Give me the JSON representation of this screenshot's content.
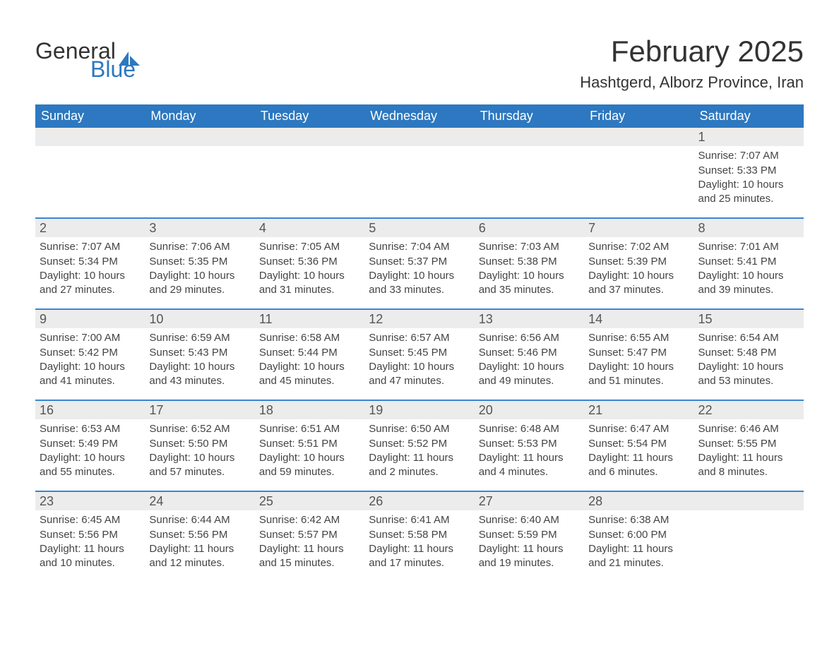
{
  "logo": {
    "line1": "General",
    "line2": "Blue",
    "sail_color": "#2d78c0"
  },
  "header": {
    "month_title": "February 2025",
    "location": "Hashtgerd, Alborz Province, Iran"
  },
  "colors": {
    "accent": "#2d78c0",
    "accent_border": "#3a86cf",
    "row_header_bg": "#ececec",
    "background": "#ffffff",
    "text": "#333333"
  },
  "weekdays": [
    "Sunday",
    "Monday",
    "Tuesday",
    "Wednesday",
    "Thursday",
    "Friday",
    "Saturday"
  ],
  "weeks": [
    [
      null,
      null,
      null,
      null,
      null,
      null,
      {
        "n": "1",
        "sunrise": "Sunrise: 7:07 AM",
        "sunset": "Sunset: 5:33 PM",
        "dl1": "Daylight: 10 hours",
        "dl2": "and 25 minutes."
      }
    ],
    [
      {
        "n": "2",
        "sunrise": "Sunrise: 7:07 AM",
        "sunset": "Sunset: 5:34 PM",
        "dl1": "Daylight: 10 hours",
        "dl2": "and 27 minutes."
      },
      {
        "n": "3",
        "sunrise": "Sunrise: 7:06 AM",
        "sunset": "Sunset: 5:35 PM",
        "dl1": "Daylight: 10 hours",
        "dl2": "and 29 minutes."
      },
      {
        "n": "4",
        "sunrise": "Sunrise: 7:05 AM",
        "sunset": "Sunset: 5:36 PM",
        "dl1": "Daylight: 10 hours",
        "dl2": "and 31 minutes."
      },
      {
        "n": "5",
        "sunrise": "Sunrise: 7:04 AM",
        "sunset": "Sunset: 5:37 PM",
        "dl1": "Daylight: 10 hours",
        "dl2": "and 33 minutes."
      },
      {
        "n": "6",
        "sunrise": "Sunrise: 7:03 AM",
        "sunset": "Sunset: 5:38 PM",
        "dl1": "Daylight: 10 hours",
        "dl2": "and 35 minutes."
      },
      {
        "n": "7",
        "sunrise": "Sunrise: 7:02 AM",
        "sunset": "Sunset: 5:39 PM",
        "dl1": "Daylight: 10 hours",
        "dl2": "and 37 minutes."
      },
      {
        "n": "8",
        "sunrise": "Sunrise: 7:01 AM",
        "sunset": "Sunset: 5:41 PM",
        "dl1": "Daylight: 10 hours",
        "dl2": "and 39 minutes."
      }
    ],
    [
      {
        "n": "9",
        "sunrise": "Sunrise: 7:00 AM",
        "sunset": "Sunset: 5:42 PM",
        "dl1": "Daylight: 10 hours",
        "dl2": "and 41 minutes."
      },
      {
        "n": "10",
        "sunrise": "Sunrise: 6:59 AM",
        "sunset": "Sunset: 5:43 PM",
        "dl1": "Daylight: 10 hours",
        "dl2": "and 43 minutes."
      },
      {
        "n": "11",
        "sunrise": "Sunrise: 6:58 AM",
        "sunset": "Sunset: 5:44 PM",
        "dl1": "Daylight: 10 hours",
        "dl2": "and 45 minutes."
      },
      {
        "n": "12",
        "sunrise": "Sunrise: 6:57 AM",
        "sunset": "Sunset: 5:45 PM",
        "dl1": "Daylight: 10 hours",
        "dl2": "and 47 minutes."
      },
      {
        "n": "13",
        "sunrise": "Sunrise: 6:56 AM",
        "sunset": "Sunset: 5:46 PM",
        "dl1": "Daylight: 10 hours",
        "dl2": "and 49 minutes."
      },
      {
        "n": "14",
        "sunrise": "Sunrise: 6:55 AM",
        "sunset": "Sunset: 5:47 PM",
        "dl1": "Daylight: 10 hours",
        "dl2": "and 51 minutes."
      },
      {
        "n": "15",
        "sunrise": "Sunrise: 6:54 AM",
        "sunset": "Sunset: 5:48 PM",
        "dl1": "Daylight: 10 hours",
        "dl2": "and 53 minutes."
      }
    ],
    [
      {
        "n": "16",
        "sunrise": "Sunrise: 6:53 AM",
        "sunset": "Sunset: 5:49 PM",
        "dl1": "Daylight: 10 hours",
        "dl2": "and 55 minutes."
      },
      {
        "n": "17",
        "sunrise": "Sunrise: 6:52 AM",
        "sunset": "Sunset: 5:50 PM",
        "dl1": "Daylight: 10 hours",
        "dl2": "and 57 minutes."
      },
      {
        "n": "18",
        "sunrise": "Sunrise: 6:51 AM",
        "sunset": "Sunset: 5:51 PM",
        "dl1": "Daylight: 10 hours",
        "dl2": "and 59 minutes."
      },
      {
        "n": "19",
        "sunrise": "Sunrise: 6:50 AM",
        "sunset": "Sunset: 5:52 PM",
        "dl1": "Daylight: 11 hours",
        "dl2": "and 2 minutes."
      },
      {
        "n": "20",
        "sunrise": "Sunrise: 6:48 AM",
        "sunset": "Sunset: 5:53 PM",
        "dl1": "Daylight: 11 hours",
        "dl2": "and 4 minutes."
      },
      {
        "n": "21",
        "sunrise": "Sunrise: 6:47 AM",
        "sunset": "Sunset: 5:54 PM",
        "dl1": "Daylight: 11 hours",
        "dl2": "and 6 minutes."
      },
      {
        "n": "22",
        "sunrise": "Sunrise: 6:46 AM",
        "sunset": "Sunset: 5:55 PM",
        "dl1": "Daylight: 11 hours",
        "dl2": "and 8 minutes."
      }
    ],
    [
      {
        "n": "23",
        "sunrise": "Sunrise: 6:45 AM",
        "sunset": "Sunset: 5:56 PM",
        "dl1": "Daylight: 11 hours",
        "dl2": "and 10 minutes."
      },
      {
        "n": "24",
        "sunrise": "Sunrise: 6:44 AM",
        "sunset": "Sunset: 5:56 PM",
        "dl1": "Daylight: 11 hours",
        "dl2": "and 12 minutes."
      },
      {
        "n": "25",
        "sunrise": "Sunrise: 6:42 AM",
        "sunset": "Sunset: 5:57 PM",
        "dl1": "Daylight: 11 hours",
        "dl2": "and 15 minutes."
      },
      {
        "n": "26",
        "sunrise": "Sunrise: 6:41 AM",
        "sunset": "Sunset: 5:58 PM",
        "dl1": "Daylight: 11 hours",
        "dl2": "and 17 minutes."
      },
      {
        "n": "27",
        "sunrise": "Sunrise: 6:40 AM",
        "sunset": "Sunset: 5:59 PM",
        "dl1": "Daylight: 11 hours",
        "dl2": "and 19 minutes."
      },
      {
        "n": "28",
        "sunrise": "Sunrise: 6:38 AM",
        "sunset": "Sunset: 6:00 PM",
        "dl1": "Daylight: 11 hours",
        "dl2": "and 21 minutes."
      },
      null
    ]
  ]
}
